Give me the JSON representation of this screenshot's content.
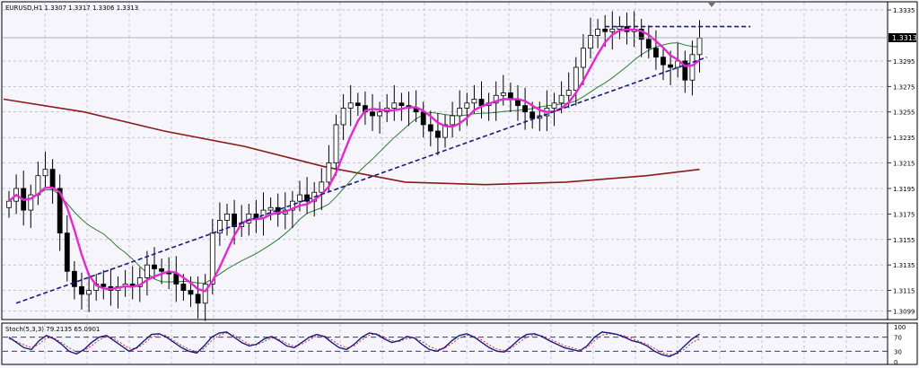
{
  "main_chart": {
    "info_text": "EURUSD,H1  1.3307 1.3317 1.3306 1.3313",
    "current_price_label": "1.3313",
    "price_axis_labels": [
      "1.3335",
      "1.3295",
      "1.3275",
      "1.3255",
      "1.3235",
      "1.3215",
      "1.3195",
      "1.3175",
      "1.3155",
      "1.3135",
      "1.3115",
      "1.3099"
    ]
  },
  "sub_chart": {
    "info_text": "Stoch(5,3,3) 79.2135 65.0901",
    "level_labels": [
      "100",
      "70",
      "30",
      "0"
    ]
  },
  "colors": {
    "background": "#f5f5fb",
    "grid": "#a8a8b4",
    "candle": "#000000",
    "ma_fast": "#e22ad0",
    "ma_mid": "#2e7d32",
    "ma_slow": "#8b1a1a",
    "trendline": "#1a1a80",
    "stoch_main": "#1a1a80",
    "stoch_signal": "#d02020"
  },
  "chart_data": {
    "type": "candlestick",
    "symbol": "EURUSD",
    "timeframe": "H1",
    "ylim": [
      1.3095,
      1.334
    ],
    "last_bar": {
      "open": 1.3307,
      "high": 1.3317,
      "low": 1.3306,
      "close": 1.3313
    },
    "closes": [
      1.3185,
      1.3195,
      1.3178,
      1.319,
      1.3205,
      1.321,
      1.3195,
      1.316,
      1.313,
      1.3118,
      1.3112,
      1.3115,
      1.312,
      1.3118,
      1.3115,
      1.3118,
      1.312,
      1.3118,
      1.3125,
      1.3135,
      1.3132,
      1.313,
      1.3128,
      1.312,
      1.3115,
      1.3112,
      1.3105,
      1.312,
      1.316,
      1.317,
      1.3175,
      1.3165,
      1.3168,
      1.3175,
      1.3172,
      1.3178,
      1.318,
      1.3175,
      1.3178,
      1.3185,
      1.319,
      1.3185,
      1.3192,
      1.32,
      1.3215,
      1.3245,
      1.3258,
      1.3262,
      1.326,
      1.3255,
      1.3252,
      1.3255,
      1.3258,
      1.3262,
      1.326,
      1.3258,
      1.3255,
      1.3245,
      1.324,
      1.3235,
      1.3245,
      1.3252,
      1.3258,
      1.3262,
      1.3265,
      1.326,
      1.3262,
      1.3268,
      1.327,
      1.3265,
      1.326,
      1.3255,
      1.325,
      1.3252,
      1.3258,
      1.3262,
      1.3268,
      1.3272,
      1.329,
      1.3305,
      1.3315,
      1.332,
      1.3318,
      1.332,
      1.3322,
      1.3318,
      1.332,
      1.3312,
      1.3305,
      1.3298,
      1.3292,
      1.329,
      1.3295,
      1.328,
      1.33,
      1.3313
    ],
    "sma_slow_points": [
      [
        0,
        1.3265
      ],
      [
        30,
        1.3255
      ],
      [
        60,
        1.324
      ],
      [
        90,
        1.3228
      ],
      [
        120,
        1.3212
      ],
      [
        150,
        1.32
      ],
      [
        180,
        1.3198
      ],
      [
        210,
        1.32
      ],
      [
        240,
        1.3205
      ],
      [
        260,
        1.321
      ]
    ],
    "trendlines": [
      {
        "from_bar": 1,
        "from_price": 1.3105,
        "to_bar": 96,
        "to_price": 1.3298
      },
      {
        "from_bar": 82,
        "from_price": 1.3322,
        "to_bar": 102,
        "to_price": 1.3322
      }
    ],
    "stochastic": {
      "levels": [
        100,
        70,
        30,
        0
      ],
      "main": [
        70,
        55,
        40,
        35,
        60,
        75,
        65,
        50,
        30,
        22,
        35,
        55,
        70,
        75,
        60,
        45,
        30,
        40,
        60,
        78,
        80,
        70,
        55,
        40,
        30,
        25,
        45,
        70,
        82,
        85,
        70,
        55,
        45,
        50,
        65,
        72,
        60,
        45,
        40,
        55,
        70,
        78,
        72,
        55,
        40,
        35,
        50,
        70,
        82,
        78,
        65,
        55,
        60,
        72,
        68,
        50,
        35,
        30,
        40,
        60,
        75,
        80,
        70,
        55,
        40,
        30,
        28,
        45,
        65,
        78,
        80,
        72,
        60,
        50,
        40,
        35,
        30,
        45,
        70,
        85,
        82,
        78,
        70,
        60,
        55,
        45,
        30,
        20,
        15,
        25,
        45,
        65,
        79
      ],
      "signal": [
        65,
        58,
        48,
        40,
        50,
        68,
        68,
        55,
        40,
        28,
        32,
        45,
        62,
        72,
        66,
        52,
        38,
        38,
        52,
        70,
        78,
        74,
        60,
        46,
        36,
        28,
        38,
        60,
        76,
        82,
        76,
        62,
        50,
        48,
        58,
        68,
        64,
        52,
        44,
        50,
        62,
        74,
        74,
        62,
        48,
        40,
        45,
        62,
        76,
        80,
        70,
        60,
        58,
        66,
        68,
        58,
        44,
        35,
        38,
        52,
        68,
        76,
        72,
        62,
        48,
        36,
        32,
        40,
        56,
        70,
        77,
        74,
        65,
        56,
        46,
        40,
        34,
        40,
        60,
        76,
        80,
        78,
        74,
        66,
        58,
        50,
        38,
        26,
        20,
        22,
        36,
        55,
        65
      ]
    }
  }
}
